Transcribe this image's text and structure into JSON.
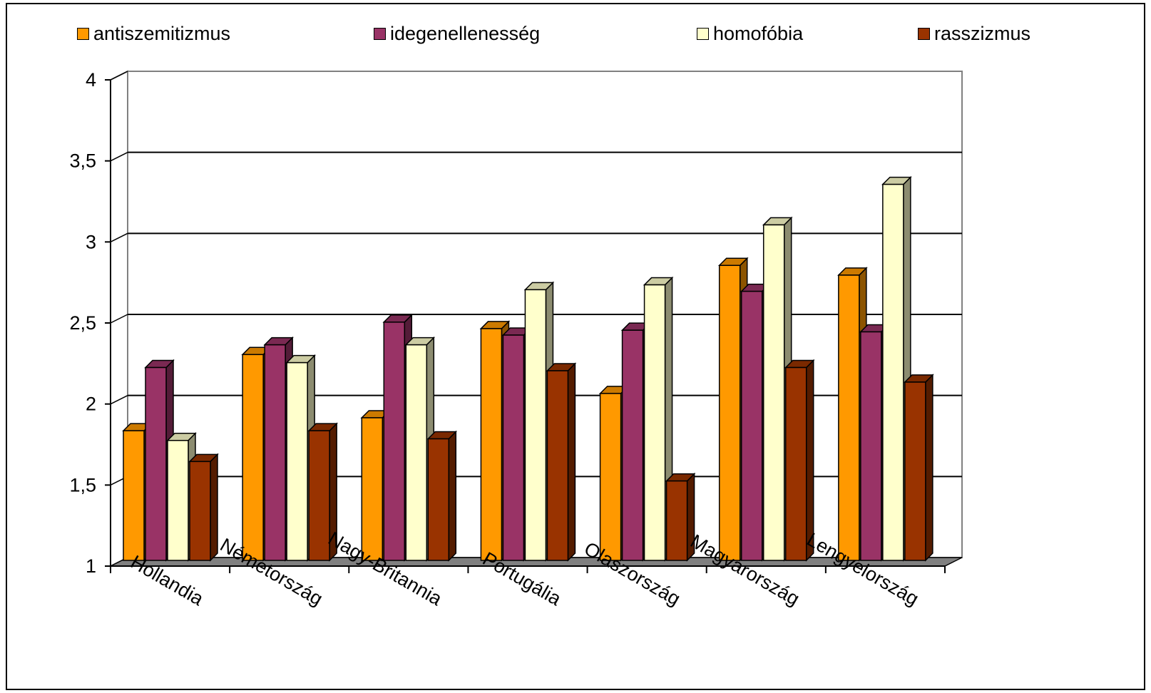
{
  "chart_data": {
    "type": "bar",
    "style": "3d-clustered-column",
    "categories": [
      "Hollandia",
      "Németország",
      "Nagy-Britannia",
      "Portugália",
      "Olaszország",
      "Magyarország",
      "Lengyelország"
    ],
    "series": [
      {
        "name": "antiszemitizmus",
        "color": "#FF9900",
        "values": [
          1.8,
          2.27,
          1.88,
          2.43,
          2.03,
          2.82,
          2.76
        ]
      },
      {
        "name": "idegenellenesség",
        "color": "#993366",
        "values": [
          2.19,
          2.33,
          2.47,
          2.39,
          2.42,
          2.66,
          2.41
        ]
      },
      {
        "name": "homofóbia",
        "color": "#FFFFCC",
        "values": [
          1.74,
          2.22,
          2.33,
          2.67,
          2.7,
          3.07,
          3.32
        ]
      },
      {
        "name": "rasszizmus",
        "color": "#993300",
        "values": [
          1.61,
          1.8,
          1.75,
          2.17,
          1.49,
          2.19,
          2.1
        ]
      }
    ],
    "yticks": [
      "1",
      "1,5",
      "2",
      "2,5",
      "3",
      "3,5",
      "4"
    ],
    "ylim": [
      1,
      4
    ],
    "grid": true,
    "legend": "top"
  }
}
